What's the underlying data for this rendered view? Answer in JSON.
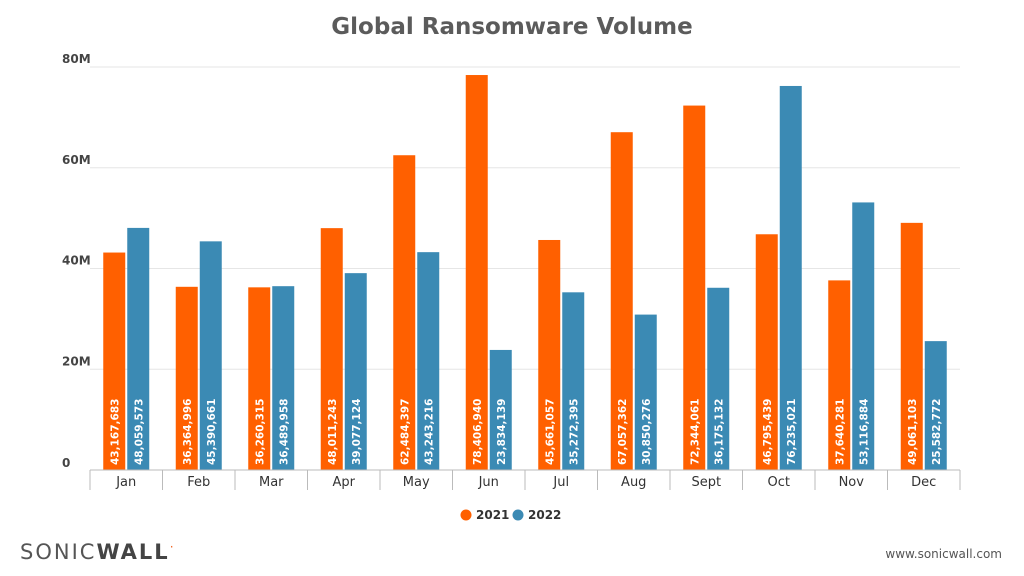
{
  "colors": {
    "y2021": "#ff6000",
    "y2022": "#3b8ab4",
    "grid": "#e6e6e6",
    "axis": "#bbbbbb"
  },
  "chart_data": {
    "type": "bar",
    "title": "Global Ransomware Volume",
    "categories": [
      "Jan",
      "Feb",
      "Mar",
      "Apr",
      "May",
      "Jun",
      "Jul",
      "Aug",
      "Sept",
      "Oct",
      "Nov",
      "Dec"
    ],
    "yticks": [
      "0",
      "20M",
      "40M",
      "60M",
      "80M"
    ],
    "ylim": [
      0,
      80000000
    ],
    "grid": true,
    "legend_position": "bottom",
    "series": [
      {
        "name": "2021",
        "values": [
          43167683,
          36364996,
          36260315,
          48011243,
          62484397,
          78406940,
          45661057,
          67057362,
          72344061,
          46795439,
          37640281,
          49061103
        ],
        "labels": [
          "43,167,683",
          "36,364,996",
          "36,260,315",
          "48,011,243",
          "62,484,397",
          "78,406,940",
          "45,661,057",
          "67,057,362",
          "72,344,061",
          "46,795,439",
          "37,640,281",
          "49,061,103"
        ]
      },
      {
        "name": "2022",
        "values": [
          48059573,
          45390661,
          36489958,
          39077124,
          43243216,
          23834139,
          35272395,
          30850276,
          36175132,
          76235021,
          53116884,
          25582772
        ],
        "labels": [
          "48,059,573",
          "45,390,661",
          "36,489,958",
          "39,077,124",
          "43,243,216",
          "23,834,139",
          "35,272,395",
          "30,850,276",
          "36,175,132",
          "76,235,021",
          "53,116,884",
          "25,582,772"
        ]
      }
    ]
  },
  "brand": {
    "logo_part1": "SONIC",
    "logo_part2": "WALL",
    "logo_mark": "·",
    "url": "www.sonicwall.com"
  }
}
